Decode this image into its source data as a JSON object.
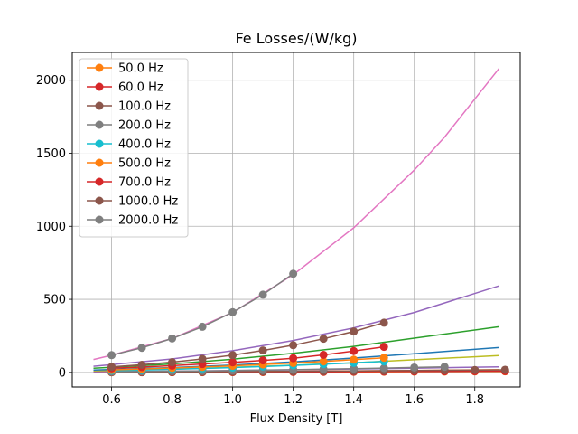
{
  "chart_data": {
    "type": "line",
    "title": "Fe Losses/(W/kg)",
    "xlabel": "Flux Density [T]",
    "ylabel": "",
    "xlim": [
      0.47,
      1.95
    ],
    "ylim": [
      -100,
      2190
    ],
    "xticks": [
      "0.6",
      "0.8",
      "1.0",
      "1.2",
      "1.4",
      "1.6",
      "1.8"
    ],
    "xtick_values": [
      0.6,
      0.8,
      1.0,
      1.2,
      1.4,
      1.6,
      1.8
    ],
    "yticks": [
      "0",
      "500",
      "1000",
      "1500",
      "2000"
    ],
    "ytick_values": [
      0,
      500,
      1000,
      1500,
      2000
    ],
    "grid": true,
    "legend_position": "top-left",
    "fit_curves": [
      {
        "color": "#ff7f0e",
        "x": [
          0.54,
          0.8,
          1.0,
          1.2,
          1.4,
          1.6,
          1.88
        ],
        "y": [
          2.0,
          3.6,
          5.5,
          7.5,
          10.0,
          13.0,
          18.0
        ]
      },
      {
        "color": "#9467bd",
        "x": [
          0.54,
          0.8,
          1.0,
          1.2,
          1.4,
          1.6,
          1.88
        ],
        "y": [
          4.5,
          8.5,
          12.5,
          17.5,
          23.0,
          29.0,
          38.0
        ]
      },
      {
        "color": "#bcbd22",
        "x": [
          0.54,
          0.8,
          1.0,
          1.2,
          1.4,
          1.6,
          1.88
        ],
        "y": [
          11.0,
          22.0,
          34.0,
          49.0,
          66.0,
          86.0,
          115.0
        ]
      },
      {
        "color": "#1f77b4",
        "x": [
          0.54,
          0.8,
          1.0,
          1.2,
          1.4,
          1.6,
          1.88
        ],
        "y": [
          16.0,
          33.0,
          50.0,
          72.0,
          98.0,
          128.0,
          170.0
        ]
      },
      {
        "color": "#2ca02c",
        "x": [
          0.54,
          0.8,
          1.0,
          1.2,
          1.4,
          1.6,
          1.88
        ],
        "y": [
          28.0,
          58.0,
          90.0,
          130.0,
          178.0,
          234.0,
          312.0
        ]
      },
      {
        "color": "#9467bd",
        "x": [
          0.54,
          0.8,
          1.0,
          1.2,
          1.4,
          1.6,
          1.88
        ],
        "y": [
          42.0,
          92.0,
          148.0,
          218.0,
          305.0,
          410.0,
          592.0
        ]
      },
      {
        "color": "#e377c2",
        "x": [
          0.54,
          0.6,
          0.8,
          1.0,
          1.2,
          1.4,
          1.6,
          1.7,
          1.88
        ],
        "y": [
          88.0,
          117.0,
          232.0,
          410.0,
          668.0,
          990.0,
          1385.0,
          1610.0,
          2080.0
        ]
      }
    ],
    "series": [
      {
        "name": "50.0 Hz",
        "color": "#ff7f0e",
        "x": [
          0.6,
          0.7,
          0.8,
          0.9,
          1.0,
          1.1,
          1.2,
          1.3,
          1.4,
          1.5,
          1.6,
          1.7,
          1.8,
          1.9
        ],
        "y": [
          0.8,
          1.0,
          1.3,
          1.6,
          2.0,
          2.4,
          2.9,
          3.4,
          4.0,
          4.6,
          5.2,
          5.9,
          6.6,
          7.2
        ]
      },
      {
        "name": "60.0 Hz",
        "color": "#d62728",
        "x": [
          0.6,
          0.7,
          0.8,
          0.9,
          1.0,
          1.1,
          1.2,
          1.3,
          1.4,
          1.5,
          1.6,
          1.7,
          1.8,
          1.9
        ],
        "y": [
          1.0,
          1.3,
          1.7,
          2.1,
          2.5,
          3.0,
          3.6,
          4.2,
          4.9,
          5.7,
          6.5,
          7.3,
          8.2,
          9.0
        ]
      },
      {
        "name": "100.0 Hz",
        "color": "#8c564b",
        "x": [
          0.6,
          0.7,
          0.8,
          0.9,
          1.0,
          1.1,
          1.2,
          1.3,
          1.4,
          1.5,
          1.6,
          1.7,
          1.8,
          1.9
        ],
        "y": [
          2.0,
          2.6,
          3.3,
          4.1,
          5.0,
          6.0,
          7.2,
          8.4,
          9.8,
          11.2,
          12.8,
          14.4,
          16.1,
          17.8
        ]
      },
      {
        "name": "200.0 Hz",
        "color": "#7f7f7f",
        "x": [
          0.6,
          0.7,
          0.8,
          0.9,
          1.0,
          1.1,
          1.2,
          1.3,
          1.4,
          1.5,
          1.6,
          1.7
        ],
        "y": [
          4.8,
          6.4,
          8.3,
          10.4,
          12.8,
          15.5,
          18.5,
          21.8,
          25.4,
          29.2,
          33.4,
          37.8
        ]
      },
      {
        "name": "400.0 Hz",
        "color": "#17becf",
        "x": [
          0.6,
          0.7,
          0.8,
          0.9,
          1.0,
          1.1,
          1.2,
          1.3,
          1.4,
          1.5
        ],
        "y": [
          12.0,
          16.0,
          21.0,
          27.0,
          33.0,
          40.0,
          48.0,
          56.0,
          65.0,
          75.0
        ]
      },
      {
        "name": "500.0 Hz",
        "color": "#ff7f0e",
        "x": [
          0.6,
          0.7,
          0.8,
          0.9,
          1.0,
          1.1,
          1.2,
          1.3,
          1.4,
          1.5
        ],
        "y": [
          17.0,
          23.0,
          30.0,
          37.0,
          45.0,
          54.0,
          64.0,
          75.0,
          87.0,
          100.0
        ]
      },
      {
        "name": "700.0 Hz",
        "color": "#d62728",
        "x": [
          0.6,
          0.7,
          0.8,
          0.9,
          1.0,
          1.1,
          1.2,
          1.3,
          1.4,
          1.5
        ],
        "y": [
          28.0,
          36.0,
          46.0,
          57.0,
          69.0,
          82.0,
          97.0,
          120.0,
          146.0,
          175.0
        ]
      },
      {
        "name": "1000.0 Hz",
        "color": "#8c564b",
        "x": [
          0.6,
          0.7,
          0.8,
          0.9,
          1.0,
          1.1,
          1.2,
          1.3,
          1.4,
          1.5
        ],
        "y": [
          38.0,
          52.0,
          70.0,
          92.0,
          118.0,
          150.0,
          186.0,
          230.0,
          280.0,
          340.0
        ]
      },
      {
        "name": "2000.0 Hz",
        "color": "#7f7f7f",
        "x": [
          0.6,
          0.7,
          0.8,
          0.9,
          1.0,
          1.1,
          1.2
        ],
        "y": [
          118.0,
          168.0,
          232.0,
          312.0,
          412.0,
          532.0,
          675.0
        ]
      }
    ]
  }
}
